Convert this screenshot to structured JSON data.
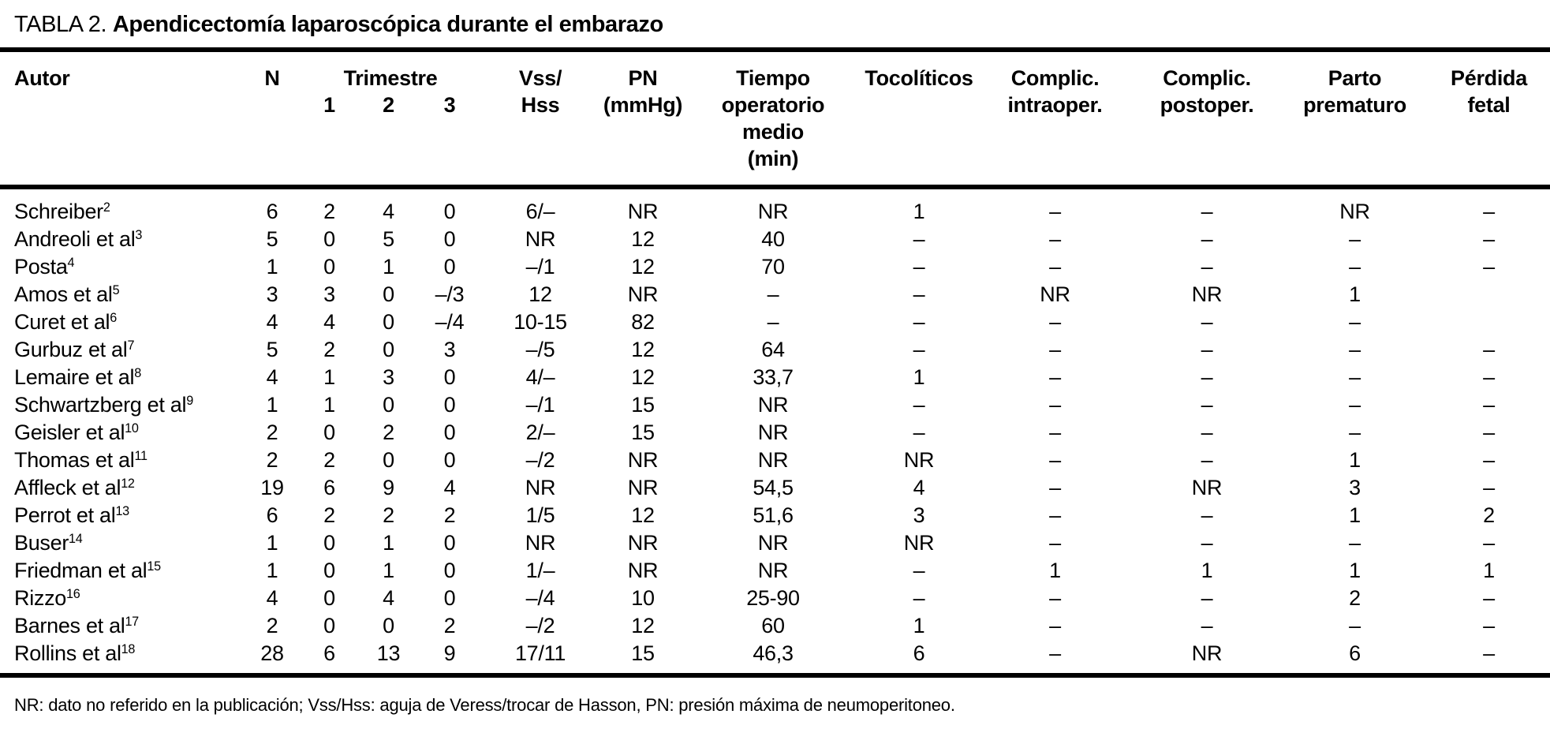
{
  "colors": {
    "text": "#000000",
    "background": "#ffffff"
  },
  "title": {
    "label": "TABLA 2.",
    "caption": "Apendicectomía laparoscópica durante el embarazo"
  },
  "table": {
    "headers": {
      "autor": "Autor",
      "n": "N",
      "trimestre": "Trimestre",
      "trimestre_cols": [
        "1",
        "2",
        "3"
      ],
      "vss_hss": "Vss/\nHss",
      "pn": "PN\n(mmHg)",
      "tiempo": "Tiempo\noperatorio\nmedio\n(min)",
      "tocoliticos": "Tocolíticos",
      "complic_intraoper": "Complic.\nintraoper.",
      "complic_postoper": "Complic.\npostoper.",
      "parto_prematuro": "Parto\nprematuro",
      "perdida_fetal": "Pérdida\nfetal"
    },
    "rows": [
      {
        "autor": "Schreiber",
        "ref": "2",
        "cells": [
          "6",
          "2",
          "4",
          "0",
          "6/–",
          "NR",
          "NR",
          "1",
          "–",
          "–",
          "NR",
          "–"
        ]
      },
      {
        "autor": "Andreoli et al",
        "ref": "3",
        "cells": [
          "5",
          "0",
          "5",
          "0",
          "NR",
          "12",
          "40",
          "–",
          "–",
          "–",
          "–",
          "–"
        ]
      },
      {
        "autor": "Posta",
        "ref": "4",
        "cells": [
          "1",
          "0",
          "1",
          "0",
          "–/1",
          "12",
          "70",
          "–",
          "–",
          "–",
          "–",
          "–"
        ]
      },
      {
        "autor": "Amos et al",
        "ref": "5",
        "cells": [
          "3",
          "3",
          "0",
          "–/3",
          "12",
          "NR",
          "–",
          "–",
          "NR",
          "NR",
          "1",
          ""
        ]
      },
      {
        "autor": "Curet et al",
        "ref": "6",
        "cells": [
          "4",
          "4",
          "0",
          "–/4",
          "10-15",
          "82",
          "–",
          "–",
          "–",
          "–",
          "–",
          ""
        ]
      },
      {
        "autor": "Gurbuz et al",
        "ref": "7",
        "cells": [
          "5",
          "2",
          "0",
          "3",
          "–/5",
          "12",
          "64",
          "–",
          "–",
          "–",
          "–",
          "–"
        ]
      },
      {
        "autor": "Lemaire et al",
        "ref": "8",
        "cells": [
          "4",
          "1",
          "3",
          "0",
          "4/–",
          "12",
          "33,7",
          "1",
          "–",
          "–",
          "–",
          "–"
        ]
      },
      {
        "autor": "Schwartzberg et al",
        "ref": "9",
        "cells": [
          "1",
          "1",
          "0",
          "0",
          "–/1",
          "15",
          "NR",
          "–",
          "–",
          "–",
          "–",
          "–"
        ]
      },
      {
        "autor": "Geisler et al",
        "ref": "10",
        "cells": [
          "2",
          "0",
          "2",
          "0",
          "2/–",
          "15",
          "NR",
          "–",
          "–",
          "–",
          "–",
          "–"
        ]
      },
      {
        "autor": "Thomas et al",
        "ref": "11",
        "cells": [
          "2",
          "2",
          "0",
          "0",
          "–/2",
          "NR",
          "NR",
          "NR",
          "–",
          "–",
          "1",
          "–"
        ]
      },
      {
        "autor": "Affleck et al",
        "ref": "12",
        "cells": [
          "19",
          "6",
          "9",
          "4",
          "NR",
          "NR",
          "54,5",
          "4",
          "–",
          "NR",
          "3",
          "–"
        ]
      },
      {
        "autor": "Perrot et al",
        "ref": "13",
        "cells": [
          "6",
          "2",
          "2",
          "2",
          "1/5",
          "12",
          "51,6",
          "3",
          "–",
          "–",
          "1",
          "2"
        ]
      },
      {
        "autor": "Buser",
        "ref": "14",
        "cells": [
          "1",
          "0",
          "1",
          "0",
          "NR",
          "NR",
          "NR",
          "NR",
          "–",
          "–",
          "–",
          "–"
        ]
      },
      {
        "autor": "Friedman et al",
        "ref": "15",
        "cells": [
          "1",
          "0",
          "1",
          "0",
          "1/–",
          "NR",
          "NR",
          "–",
          "1",
          "1",
          "1",
          "1"
        ]
      },
      {
        "autor": "Rizzo",
        "ref": "16",
        "cells": [
          "4",
          "0",
          "4",
          "0",
          "–/4",
          "10",
          "25-90",
          "–",
          "–",
          "–",
          "2",
          "–"
        ]
      },
      {
        "autor": "Barnes et al",
        "ref": "17",
        "cells": [
          "2",
          "0",
          "0",
          "2",
          "–/2",
          "12",
          "60",
          "1",
          "–",
          "–",
          "–",
          "–"
        ]
      },
      {
        "autor": "Rollins et al",
        "ref": "18",
        "cells": [
          "28",
          "6",
          "13",
          "9",
          "17/11",
          "15",
          "46,3",
          "6",
          "–",
          "NR",
          "6",
          "–"
        ]
      }
    ]
  },
  "footnote": "NR: dato no referido en la publicación; Vss/Hss: aguja de Veress/trocar de Hasson, PN: presión máxima de neumoperitoneo."
}
